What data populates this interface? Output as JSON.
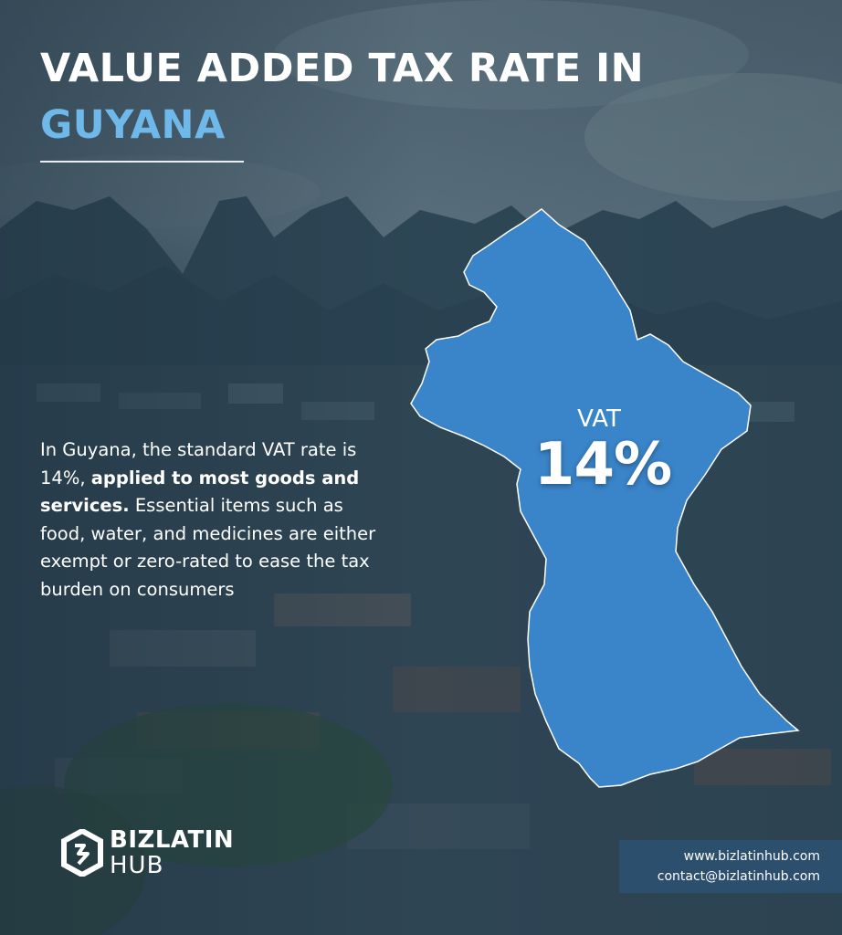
{
  "title": {
    "line1": "VALUE ADDED TAX RATE IN",
    "line2": "GUYANA"
  },
  "map": {
    "country": "Guyana",
    "fill_color": "#3a84c9",
    "label": "VAT",
    "value": "14%"
  },
  "description": {
    "part1": "In Guyana, the standard VAT rate is 14%, ",
    "bold": "applied to most goods and services.",
    "part2": " Essential items such as food, water, and medicines are either exempt or zero-rated to ease the tax burden on consumers"
  },
  "brand": {
    "line1": "BIZLATIN",
    "line2": "HUB",
    "icon": "bizlatinhub-logo-icon"
  },
  "contact": {
    "website": "www.bizlatinhub.com",
    "email": "contact@bizlatinhub.com",
    "background": "#2d4f6e"
  },
  "colors": {
    "accent": "#6fb8ea",
    "map_fill": "#3a84c9"
  }
}
